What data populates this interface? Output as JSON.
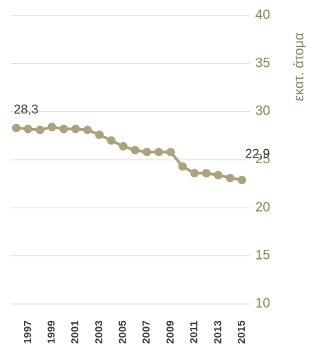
{
  "chart_data": {
    "type": "line",
    "categories": [
      null,
      "1997",
      null,
      "1999",
      null,
      "2001",
      null,
      "2003",
      null,
      "2005",
      null,
      "2007",
      null,
      "2009",
      null,
      "2011",
      null,
      "2013",
      null,
      "2015"
    ],
    "series": [
      {
        "name": "εκατ. άτομα",
        "color": "#aba37d",
        "values": [
          28.3,
          28.2,
          28.1,
          28.4,
          28.2,
          28.2,
          28.1,
          27.6,
          27.0,
          26.4,
          26.0,
          25.8,
          25.8,
          25.8,
          24.3,
          23.6,
          23.6,
          23.4,
          23.1,
          22.9
        ],
        "value_labels": [
          "28,3",
          null,
          null,
          null,
          null,
          null,
          null,
          null,
          null,
          null,
          null,
          null,
          null,
          null,
          null,
          null,
          null,
          null,
          null,
          "22,9"
        ]
      }
    ],
    "y_axis_label": "εκατ. άτομα",
    "ylim": [
      10,
      40
    ],
    "yticks": [
      10,
      15,
      20,
      25,
      30,
      35,
      40
    ],
    "grid": true,
    "y_axis_side": "right"
  }
}
